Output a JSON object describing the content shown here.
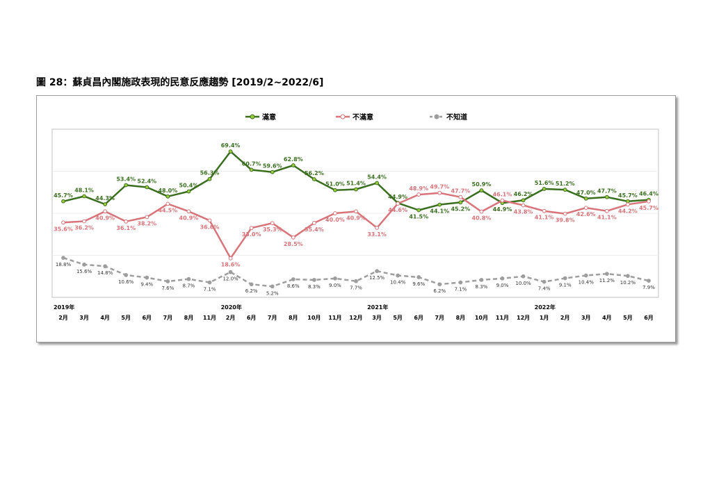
{
  "title": "圖 28：蘇貞昌內閣施政表現的民意反應趨勢 [2019/2~2022/6]",
  "chart_data": {
    "type": "line",
    "years": [
      {
        "label": "2019年",
        "index": 0
      },
      {
        "label": "2020年",
        "index": 8
      },
      {
        "label": "2021年",
        "index": 15
      },
      {
        "label": "2022年",
        "index": 23
      }
    ],
    "categories": [
      "2月",
      "3月",
      "4月",
      "5月",
      "6月",
      "7月",
      "8月",
      "11月",
      "2月",
      "6月",
      "7月",
      "8月",
      "10月",
      "11月",
      "12月",
      "3月",
      "5月",
      "6月",
      "7月",
      "8月",
      "10月",
      "11月",
      "12月",
      "1月",
      "2月",
      "3月",
      "4月",
      "5月",
      "6月"
    ],
    "ylim": [
      0,
      80
    ],
    "grid": true,
    "legend": "top-center",
    "series": [
      {
        "name": "滿意",
        "color": "#3a6e1f",
        "marker": "#9ccc3c",
        "dashed": false,
        "values": [
          45.7,
          48.1,
          44.3,
          53.4,
          52.4,
          48.0,
          50.4,
          56.3,
          69.4,
          60.7,
          59.6,
          62.8,
          56.2,
          51.0,
          51.4,
          54.4,
          44.9,
          41.5,
          44.1,
          45.2,
          50.9,
          44.9,
          46.2,
          51.6,
          51.2,
          47.0,
          47.7,
          45.7,
          46.4
        ],
        "labels": [
          "45.7%",
          "48.1%",
          "44.3%",
          "53.4%",
          "52.4%",
          "48.0%",
          "50.4%",
          "56.3%",
          "69.4%",
          "60.7%",
          "59.6%",
          "62.8%",
          "56.2%",
          "51.0%",
          "51.4%",
          "54.4%",
          "44.9%",
          "41.5%",
          "44.1%",
          "45.2%",
          "50.9%",
          "44.9%",
          "46.2%",
          "51.6%",
          "51.2%",
          "47.0%",
          "47.7%",
          "45.7%",
          "46.4%"
        ]
      },
      {
        "name": "不滿意",
        "color": "#d9737a",
        "marker": "#ffffff",
        "dashed": false,
        "values": [
          35.6,
          36.2,
          40.9,
          36.1,
          38.2,
          44.5,
          40.9,
          36.6,
          18.6,
          33.0,
          35.3,
          28.5,
          35.4,
          40.0,
          40.9,
          33.1,
          44.6,
          48.9,
          49.7,
          47.7,
          40.8,
          46.1,
          43.8,
          41.1,
          39.8,
          42.6,
          41.1,
          44.2,
          45.7
        ],
        "labels": [
          "35.6%",
          "36.2%",
          "40.9%",
          "36.1%",
          "38.2%",
          "44.5%",
          "40.9%",
          "36.6%",
          "18.6%",
          "33.0%",
          "35.3%",
          "28.5%",
          "35.4%",
          "40.0%",
          "40.9%",
          "33.1%",
          "44.6%",
          "48.9%",
          "49.7%",
          "47.7%",
          "40.8%",
          "46.1%",
          "43.8%",
          "41.1%",
          "39.8%",
          "42.6%",
          "41.1%",
          "44.2%",
          "45.7%"
        ]
      },
      {
        "name": "不知道",
        "color": "#9d9d9d",
        "marker": "#9d9d9d",
        "dashed": true,
        "values": [
          18.8,
          15.6,
          14.8,
          10.6,
          9.4,
          7.6,
          8.7,
          7.1,
          12.0,
          6.2,
          5.2,
          8.6,
          8.3,
          9.0,
          7.7,
          12.5,
          10.4,
          9.6,
          6.2,
          7.1,
          8.3,
          9.0,
          10.0,
          7.4,
          9.1,
          10.4,
          11.2,
          10.2,
          7.9
        ],
        "labels": [
          "18.8%",
          "15.6%",
          "14.8%",
          "10.6%",
          "9.4%",
          "7.6%",
          "8.7%",
          "7.1%",
          "12.0%",
          "6.2%",
          "5.2%",
          "8.6%",
          "8.3%",
          "9.0%",
          "7.7%",
          "12.5%",
          "10.4%",
          "9.6%",
          "6.2%",
          "7.1%",
          "8.3%",
          "9.0%",
          "10.0%",
          "7.4%",
          "9.1%",
          "10.4%",
          "11.2%",
          "10.2%",
          "7.9%"
        ]
      }
    ]
  }
}
